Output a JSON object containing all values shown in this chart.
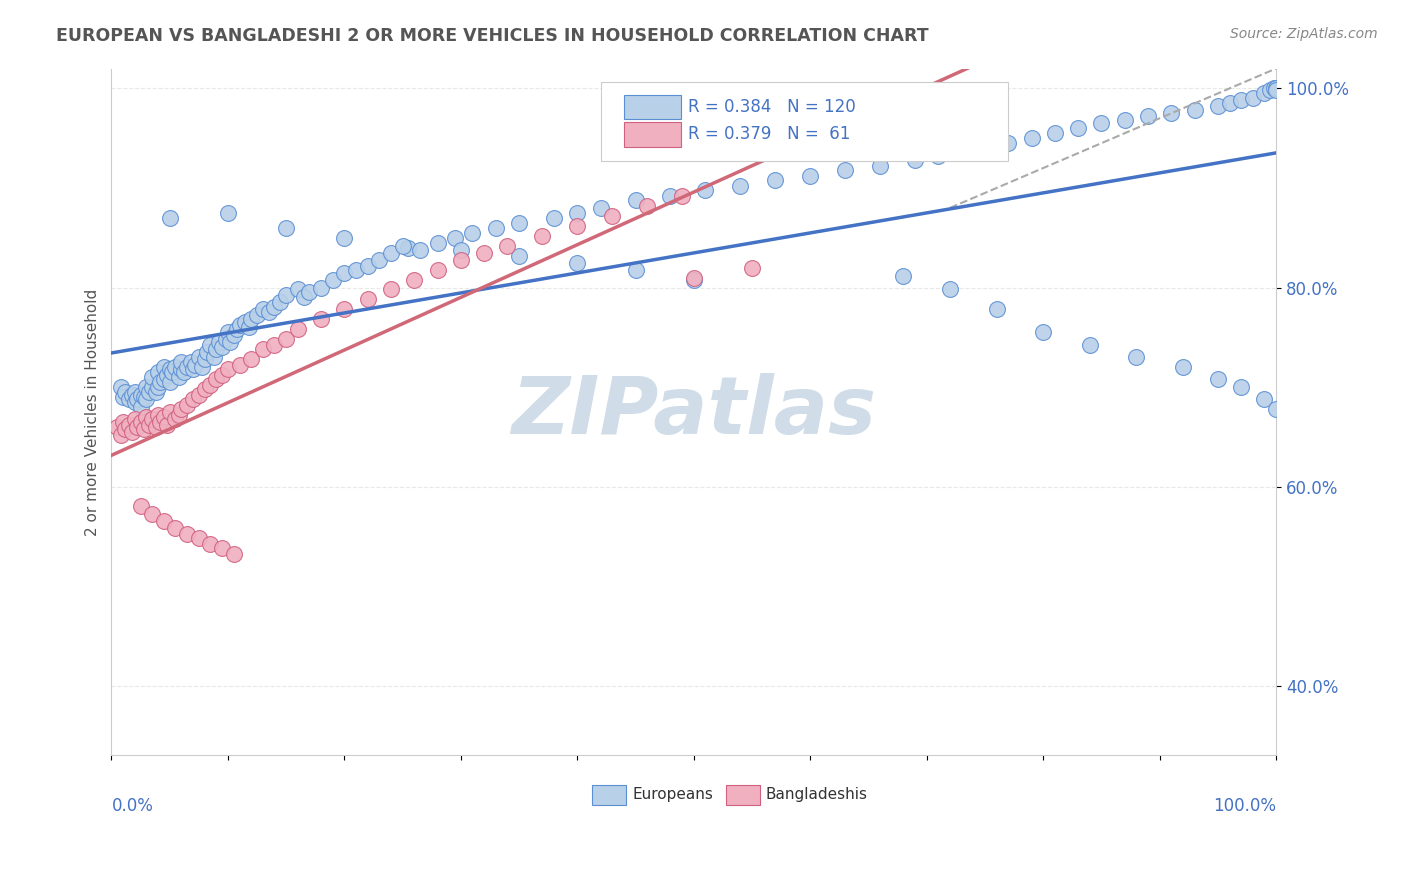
{
  "title": "EUROPEAN VS BANGLADESHI 2 OR MORE VEHICLES IN HOUSEHOLD CORRELATION CHART",
  "source_text": "Source: ZipAtlas.com",
  "ylabel": "2 or more Vehicles in Household",
  "european_R": 0.384,
  "european_N": 120,
  "bangladeshi_R": 0.379,
  "bangladeshi_N": 61,
  "blue_fill": "#b8d0e8",
  "blue_edge": "#5b8fd4",
  "pink_fill": "#f0b0c0",
  "pink_edge": "#d06080",
  "blue_line": "#4472c4",
  "pink_line": "#d06878",
  "title_color": "#555555",
  "axis_color": "#4472c4",
  "source_color": "#888888",
  "watermark_color": "#d0dde8",
  "grid_color": "#e8e8e8",
  "bg_color": "#ffffff",
  "xlim": [
    0.0,
    1.0
  ],
  "ylim": [
    0.55,
    1.02
  ],
  "yticks": [
    0.6,
    0.7,
    0.8,
    0.9,
    1.0
  ],
  "ytick_labels": [
    "60.0%",
    "",
    "80.0%",
    "",
    "100.0%"
  ],
  "dashed_line_start_x": 0.72,
  "dashed_line_end_x": 1.0,
  "dashed_line_start_y": 0.88,
  "dashed_line_end_y": 1.02,
  "eu_seed": 17,
  "bd_seed": 42,
  "scatter_size": 130,
  "eu_x": [
    0.008,
    0.01,
    0.012,
    0.015,
    0.018,
    0.02,
    0.02,
    0.022,
    0.025,
    0.025,
    0.028,
    0.03,
    0.03,
    0.032,
    0.035,
    0.035,
    0.038,
    0.04,
    0.04,
    0.042,
    0.045,
    0.045,
    0.048,
    0.05,
    0.05,
    0.052,
    0.055,
    0.058,
    0.06,
    0.06,
    0.062,
    0.065,
    0.068,
    0.07,
    0.072,
    0.075,
    0.078,
    0.08,
    0.082,
    0.085,
    0.088,
    0.09,
    0.092,
    0.095,
    0.098,
    0.1,
    0.102,
    0.105,
    0.108,
    0.11,
    0.115,
    0.118,
    0.12,
    0.125,
    0.13,
    0.135,
    0.14,
    0.145,
    0.15,
    0.16,
    0.165,
    0.17,
    0.18,
    0.19,
    0.2,
    0.21,
    0.22,
    0.23,
    0.24,
    0.255,
    0.265,
    0.28,
    0.295,
    0.31,
    0.33,
    0.35,
    0.38,
    0.4,
    0.42,
    0.45,
    0.48,
    0.51,
    0.54,
    0.57,
    0.6,
    0.63,
    0.66,
    0.69,
    0.71,
    0.73,
    0.75,
    0.77,
    0.79,
    0.81,
    0.83,
    0.85,
    0.87,
    0.89,
    0.91,
    0.93,
    0.95,
    0.96,
    0.97,
    0.98,
    0.99,
    0.995,
    0.998,
    1.0,
    1.0,
    0.68,
    0.72,
    0.76,
    0.8,
    0.84,
    0.88,
    0.92,
    0.95,
    0.97,
    0.99,
    1.0,
    0.05,
    0.1,
    0.15,
    0.2,
    0.25,
    0.3,
    0.35,
    0.4,
    0.45,
    0.5
  ],
  "eu_y": [
    0.7,
    0.69,
    0.695,
    0.688,
    0.692,
    0.685,
    0.695,
    0.688,
    0.692,
    0.68,
    0.69,
    0.7,
    0.688,
    0.695,
    0.7,
    0.71,
    0.695,
    0.7,
    0.715,
    0.705,
    0.72,
    0.708,
    0.712,
    0.718,
    0.705,
    0.715,
    0.72,
    0.71,
    0.718,
    0.725,
    0.715,
    0.72,
    0.725,
    0.718,
    0.722,
    0.73,
    0.72,
    0.728,
    0.735,
    0.742,
    0.73,
    0.738,
    0.745,
    0.74,
    0.748,
    0.755,
    0.745,
    0.752,
    0.758,
    0.762,
    0.765,
    0.76,
    0.768,
    0.772,
    0.778,
    0.775,
    0.78,
    0.785,
    0.792,
    0.798,
    0.79,
    0.795,
    0.8,
    0.808,
    0.815,
    0.818,
    0.822,
    0.828,
    0.835,
    0.84,
    0.838,
    0.845,
    0.85,
    0.855,
    0.86,
    0.865,
    0.87,
    0.875,
    0.88,
    0.888,
    0.892,
    0.898,
    0.902,
    0.908,
    0.912,
    0.918,
    0.922,
    0.928,
    0.932,
    0.936,
    0.94,
    0.945,
    0.95,
    0.955,
    0.96,
    0.965,
    0.968,
    0.972,
    0.975,
    0.978,
    0.982,
    0.985,
    0.988,
    0.99,
    0.995,
    0.998,
    1.0,
    1.0,
    0.998,
    0.812,
    0.798,
    0.778,
    0.755,
    0.742,
    0.73,
    0.72,
    0.708,
    0.7,
    0.688,
    0.678,
    0.87,
    0.875,
    0.86,
    0.85,
    0.842,
    0.838,
    0.832,
    0.825,
    0.818,
    0.808
  ],
  "bd_x": [
    0.005,
    0.008,
    0.01,
    0.012,
    0.015,
    0.018,
    0.02,
    0.022,
    0.025,
    0.028,
    0.03,
    0.032,
    0.035,
    0.038,
    0.04,
    0.042,
    0.045,
    0.048,
    0.05,
    0.055,
    0.058,
    0.06,
    0.065,
    0.07,
    0.075,
    0.08,
    0.085,
    0.09,
    0.095,
    0.1,
    0.11,
    0.12,
    0.13,
    0.14,
    0.15,
    0.16,
    0.18,
    0.2,
    0.22,
    0.24,
    0.26,
    0.28,
    0.3,
    0.32,
    0.34,
    0.37,
    0.4,
    0.43,
    0.46,
    0.49,
    0.025,
    0.035,
    0.045,
    0.055,
    0.065,
    0.075,
    0.085,
    0.095,
    0.105,
    0.5,
    0.55
  ],
  "bd_y": [
    0.66,
    0.652,
    0.665,
    0.658,
    0.662,
    0.655,
    0.668,
    0.66,
    0.665,
    0.658,
    0.67,
    0.662,
    0.668,
    0.66,
    0.672,
    0.665,
    0.67,
    0.662,
    0.675,
    0.668,
    0.672,
    0.678,
    0.682,
    0.688,
    0.692,
    0.698,
    0.702,
    0.708,
    0.712,
    0.718,
    0.722,
    0.728,
    0.738,
    0.742,
    0.748,
    0.758,
    0.768,
    0.778,
    0.788,
    0.798,
    0.808,
    0.818,
    0.828,
    0.835,
    0.842,
    0.852,
    0.862,
    0.872,
    0.882,
    0.892,
    0.58,
    0.572,
    0.565,
    0.558,
    0.552,
    0.548,
    0.542,
    0.538,
    0.532,
    0.81,
    0.82
  ]
}
